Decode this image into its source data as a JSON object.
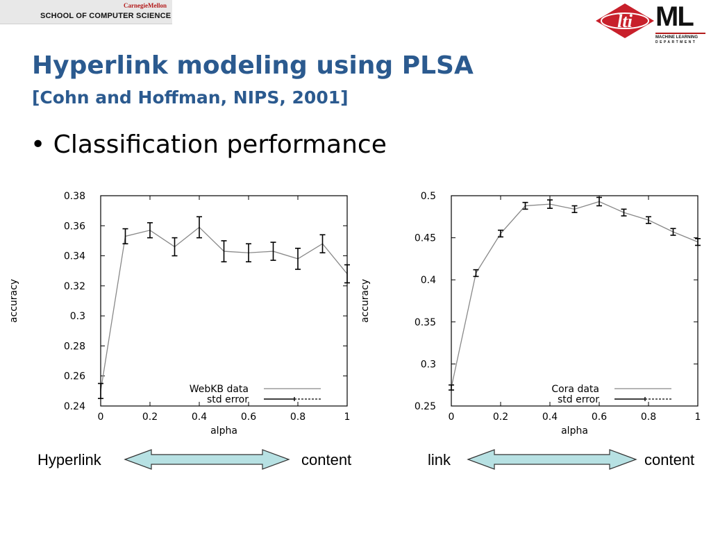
{
  "header": {
    "university": "CarnegieMellon",
    "school": "SCHOOL OF COMPUTER SCIENCE"
  },
  "logos": {
    "lti_text": "lti",
    "ml_text": "ML",
    "ml_sub1": "MACHINE LEARNING",
    "ml_sub2": "DEPARTMENT"
  },
  "slide": {
    "title": "Hyperlink modeling using PLSA",
    "subtitle": "[Cohn and Hoffman, NIPS, 2001]",
    "bullet": "• Classification performance"
  },
  "colors": {
    "title": "#2b5a8f",
    "arrow_fill": "#b7e1e3",
    "brand_red": "#b31b1b"
  },
  "arrows": [
    {
      "left": "Hyperlink",
      "right": "content"
    },
    {
      "left": "link",
      "right": "content"
    }
  ],
  "chart_data": [
    {
      "type": "line",
      "xlabel": "alpha",
      "ylabel": "accuracy",
      "xlim": [
        0,
        1
      ],
      "ylim": [
        0.24,
        0.38
      ],
      "x_ticks": [
        "0",
        "0.2",
        "0.4",
        "0.6",
        "0.8",
        "1"
      ],
      "y_ticks": [
        "0.24",
        "0.26",
        "0.28",
        "0.3",
        "0.32",
        "0.34",
        "0.36",
        "0.38"
      ],
      "legend_position": "bottom-right",
      "series": [
        {
          "name": "WebKB data",
          "x": [
            0,
            0.1,
            0.2,
            0.3,
            0.4,
            0.5,
            0.6,
            0.7,
            0.8,
            0.9,
            1
          ],
          "y": [
            0.25,
            0.353,
            0.357,
            0.346,
            0.359,
            0.343,
            0.342,
            0.343,
            0.338,
            0.348,
            0.328
          ],
          "err": [
            0.005,
            0.005,
            0.005,
            0.006,
            0.007,
            0.007,
            0.006,
            0.006,
            0.007,
            0.006,
            0.006
          ]
        },
        {
          "name": "std error"
        }
      ]
    },
    {
      "type": "line",
      "xlabel": "alpha",
      "ylabel": "accuracy",
      "xlim": [
        0,
        1
      ],
      "ylim": [
        0.25,
        0.5
      ],
      "x_ticks": [
        "0",
        "0.2",
        "0.4",
        "0.6",
        "0.8",
        "1"
      ],
      "y_ticks": [
        "0.25",
        "0.3",
        "0.35",
        "0.4",
        "0.45",
        "0.5"
      ],
      "legend_position": "bottom-right",
      "series": [
        {
          "name": "Cora data",
          "x": [
            0,
            0.1,
            0.2,
            0.3,
            0.4,
            0.5,
            0.6,
            0.7,
            0.8,
            0.9,
            1
          ],
          "y": [
            0.272,
            0.408,
            0.455,
            0.488,
            0.49,
            0.484,
            0.493,
            0.48,
            0.471,
            0.457,
            0.445
          ],
          "err": [
            0.003,
            0.004,
            0.004,
            0.004,
            0.005,
            0.004,
            0.005,
            0.004,
            0.004,
            0.004,
            0.004
          ]
        },
        {
          "name": "std error"
        }
      ]
    }
  ]
}
